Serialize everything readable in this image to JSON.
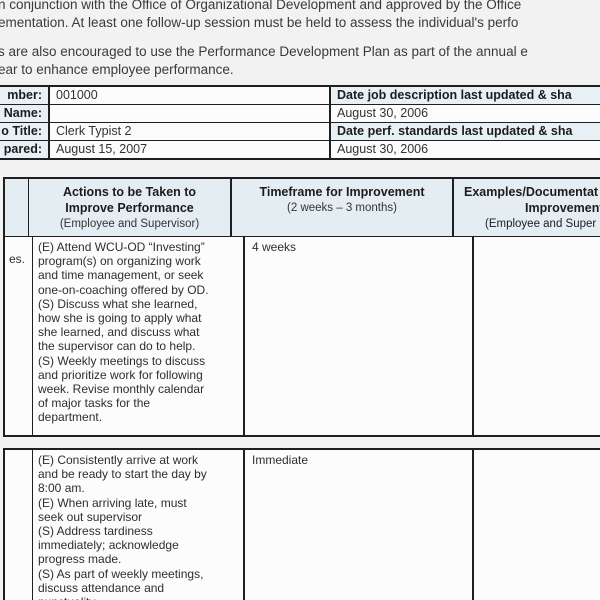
{
  "intro": {
    "para1": "n conjunction with the Office of Organizational Development and approved by the Office\nementation.  At least one follow-up session must be held to assess the individual's perfo",
    "para2": "s are also encouraged to use the Performance Development Plan as part of the annual e\near to enhance employee performance."
  },
  "info_table": {
    "rows": [
      {
        "label": "mber:",
        "value": "001000",
        "right": "Date job description last updated & sha"
      },
      {
        "label": "Name:",
        "value": "",
        "right": "August 30, 2006"
      },
      {
        "label": "o Title:",
        "value": "Clerk Typist 2",
        "right": "Date perf. standards last updated & sha"
      },
      {
        "label": "pared:",
        "value": "August 15, 2007",
        "right": "August 30, 2006"
      }
    ]
  },
  "action_table": {
    "header": {
      "actions_title": "Actions to be Taken to\nImprove Performance",
      "actions_sub": "(Employee and Supervisor)",
      "timeframe_title": "Timeframe for Improvement",
      "timeframe_sub": "(2 weeks – 3 months)",
      "examples_line1": "Examples/Documentat",
      "examples_line2": "Improvement",
      "examples_sub": "(Employee and Super"
    },
    "row1": {
      "left_fragment": "es.",
      "actions": "(E)  Attend WCU-OD “Investing”\nprogram(s) on organizing work\nand time management, or seek\none-on-coaching offered by OD.\n(S) Discuss what she learned,\nhow she is going to apply what\nshe learned, and discuss what\nthe supervisor can do to help.\n(S) Weekly meetings to discuss\nand prioritize work for following\nweek. Revise monthly calendar\nof major tasks for the\ndepartment.",
      "timeframe": "4 weeks"
    },
    "row2": {
      "left_fragment": "",
      "actions": "(E) Consistently arrive at work\nand be ready to start the day by\n8:00 am.\n(E) When arriving late, must\nseek out supervisor\n(S) Address tardiness\nimmediately; acknowledge\nprogress made.\n(S) As part of weekly meetings,\ndiscuss attendance and\npunctuality",
      "timeframe": "Immediate"
    }
  }
}
